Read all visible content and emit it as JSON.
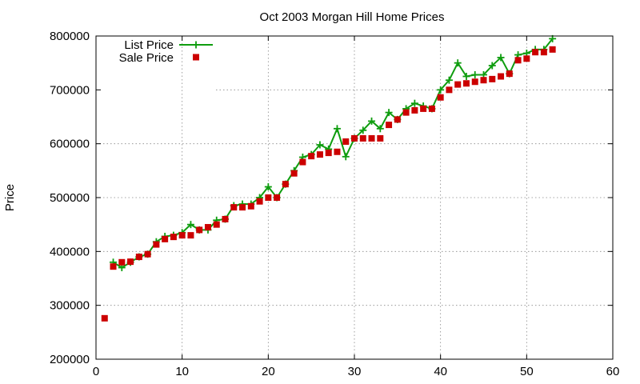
{
  "chart_data": {
    "type": "line",
    "title": "Oct 2003 Morgan Hill Home Prices",
    "xlabel": "",
    "ylabel": "Price",
    "xlim": [
      0,
      60
    ],
    "ylim": [
      200000,
      800000
    ],
    "x_ticks": [
      0,
      10,
      20,
      30,
      40,
      50,
      60
    ],
    "y_ticks": [
      200000,
      300000,
      400000,
      500000,
      600000,
      700000,
      800000
    ],
    "grid": true,
    "legend_position": "top-left",
    "series": [
      {
        "name": "List Price",
        "style": "line-plus",
        "color": "#0f9d0f",
        "x": [
          2,
          3,
          4,
          5,
          6,
          7,
          8,
          9,
          10,
          11,
          12,
          13,
          14,
          15,
          16,
          17,
          18,
          19,
          20,
          21,
          22,
          23,
          24,
          25,
          26,
          27,
          28,
          29,
          30,
          31,
          32,
          33,
          34,
          35,
          36,
          37,
          38,
          39,
          40,
          41,
          42,
          43,
          44,
          45,
          46,
          47,
          48,
          49,
          50,
          51,
          52,
          53
        ],
        "values": [
          380000,
          370000,
          380000,
          390000,
          395000,
          418000,
          428000,
          430000,
          435000,
          450000,
          440000,
          440000,
          458000,
          460000,
          485000,
          488000,
          488000,
          500000,
          520000,
          500000,
          525000,
          550000,
          575000,
          580000,
          598000,
          590000,
          628000,
          576000,
          610000,
          625000,
          642000,
          628000,
          658000,
          645000,
          665000,
          675000,
          670000,
          665000,
          700000,
          718000,
          750000,
          725000,
          728000,
          728000,
          745000,
          760000,
          730000,
          765000,
          768000,
          775000,
          775000,
          795000
        ]
      },
      {
        "name": "Sale Price",
        "style": "square",
        "color": "#cc0000",
        "x": [
          1,
          2,
          3,
          4,
          5,
          6,
          7,
          8,
          9,
          10,
          11,
          12,
          13,
          14,
          15,
          16,
          17,
          18,
          19,
          20,
          21,
          22,
          23,
          24,
          25,
          26,
          27,
          28,
          29,
          30,
          31,
          32,
          33,
          34,
          35,
          36,
          37,
          38,
          39,
          40,
          41,
          42,
          43,
          44,
          45,
          46,
          47,
          48,
          49,
          50,
          51,
          52,
          53
        ],
        "values": [
          276000,
          372000,
          380000,
          381000,
          390000,
          395000,
          413000,
          423000,
          427000,
          430000,
          430000,
          440000,
          445000,
          450000,
          460000,
          482000,
          482000,
          484000,
          493000,
          500000,
          500000,
          525000,
          545000,
          566000,
          577000,
          580000,
          583000,
          585000,
          604000,
          610000,
          610000,
          610000,
          610000,
          635000,
          645000,
          658000,
          662000,
          665000,
          665000,
          686000,
          700000,
          710000,
          712000,
          715000,
          718000,
          720000,
          725000,
          730000,
          755000,
          758000,
          770000,
          770000,
          775000
        ]
      }
    ]
  }
}
